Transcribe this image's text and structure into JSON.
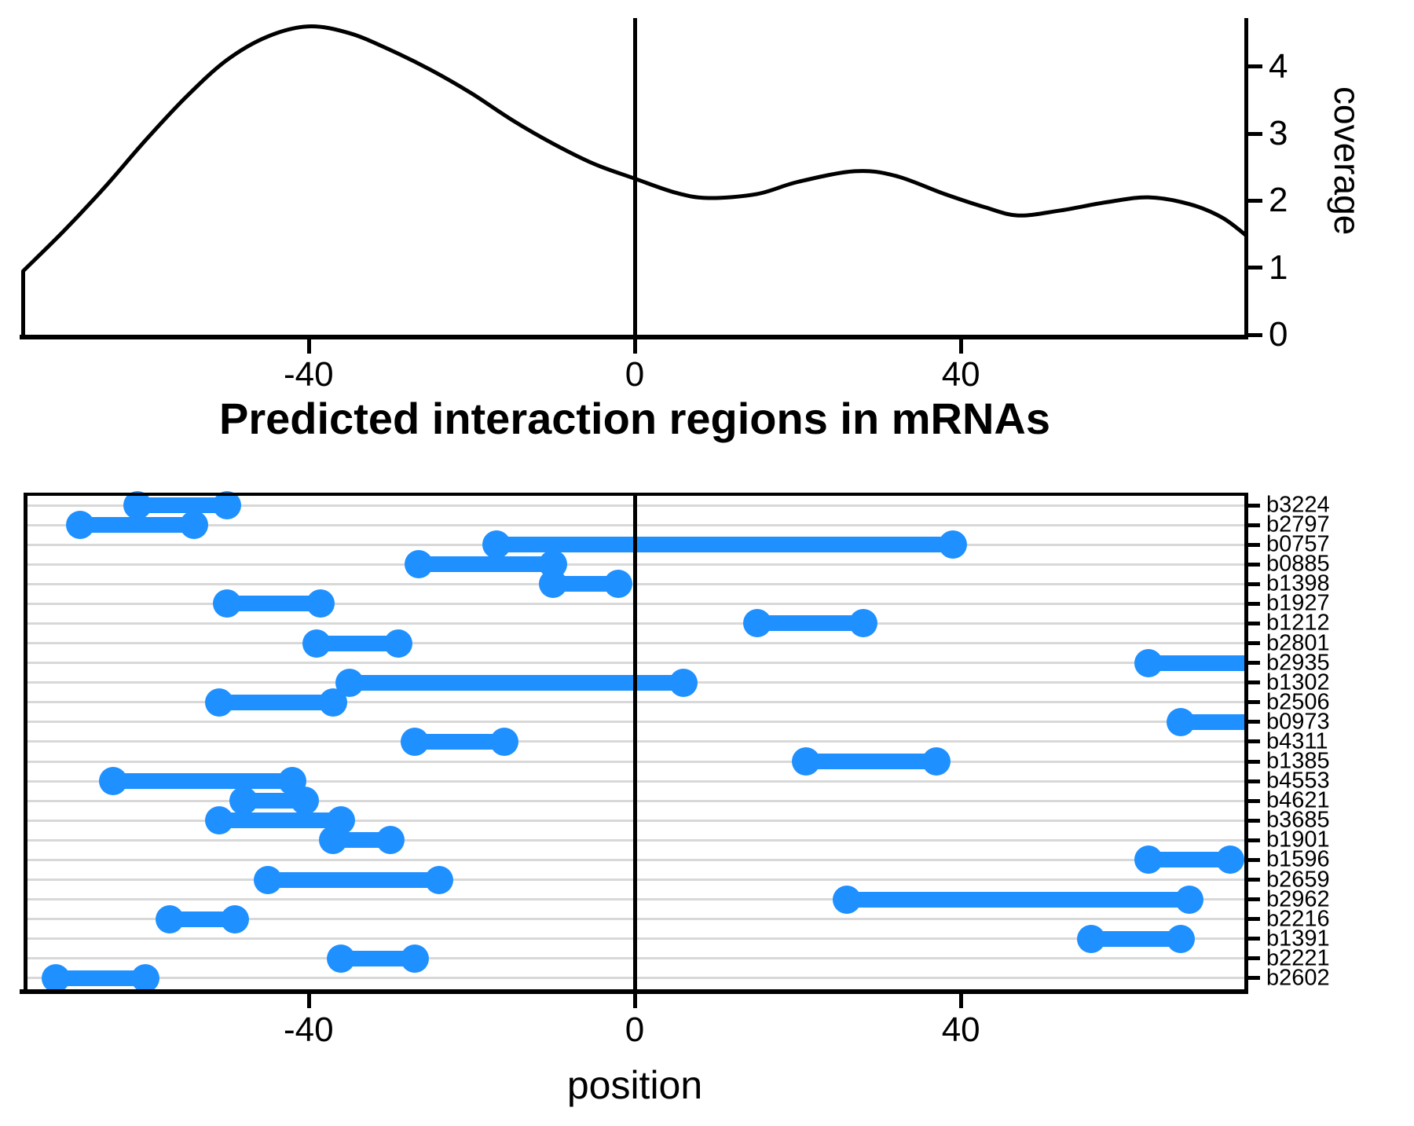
{
  "title": "Predicted interaction regions in mRNAs",
  "colors": {
    "segment": "#1e90ff",
    "gridline": "#d8d8d8",
    "axis": "#000000",
    "curve": "#000000"
  },
  "top_panel": {
    "ylabel": "coverage",
    "yticks": [
      {
        "label": "0",
        "value": 0
      },
      {
        "label": "1",
        "value": 1
      },
      {
        "label": "2",
        "value": 2
      },
      {
        "label": "3",
        "value": 3
      },
      {
        "label": "4",
        "value": 4
      }
    ],
    "xticks": [
      {
        "label": "-40",
        "value": -40
      },
      {
        "label": "0",
        "value": 0
      },
      {
        "label": "40",
        "value": 40
      }
    ]
  },
  "bottom_panel": {
    "xlabel": "position",
    "xticks": [
      {
        "label": "-40",
        "value": -40
      },
      {
        "label": "0",
        "value": 0
      },
      {
        "label": "40",
        "value": 40
      }
    ]
  },
  "chart_data": [
    {
      "type": "line",
      "name": "coverage-density-curve",
      "xlabel": "position",
      "ylabel": "coverage",
      "xlim": [
        -75,
        75
      ],
      "ylim": [
        0,
        4.75
      ],
      "grid": false,
      "points": [
        [
          -75,
          0.95
        ],
        [
          -70,
          1.55
        ],
        [
          -65,
          2.2
        ],
        [
          -60,
          2.9
        ],
        [
          -55,
          3.55
        ],
        [
          -50,
          4.1
        ],
        [
          -45,
          4.45
        ],
        [
          -40,
          4.6
        ],
        [
          -35,
          4.5
        ],
        [
          -30,
          4.25
        ],
        [
          -25,
          3.95
        ],
        [
          -20,
          3.6
        ],
        [
          -15,
          3.2
        ],
        [
          -10,
          2.85
        ],
        [
          -5,
          2.55
        ],
        [
          0,
          2.33
        ],
        [
          5,
          2.12
        ],
        [
          9,
          2.04
        ],
        [
          15,
          2.1
        ],
        [
          20,
          2.28
        ],
        [
          27,
          2.44
        ],
        [
          32,
          2.37
        ],
        [
          38,
          2.1
        ],
        [
          43,
          1.9
        ],
        [
          47,
          1.78
        ],
        [
          52,
          1.85
        ],
        [
          58,
          1.98
        ],
        [
          63,
          2.05
        ],
        [
          68,
          1.95
        ],
        [
          72,
          1.75
        ],
        [
          75,
          1.48
        ]
      ],
      "left_edge_drops_to_zero": true
    },
    {
      "type": "segments",
      "name": "predicted-interaction-regions",
      "title": "Predicted interaction regions in mRNAs",
      "xlabel": "position",
      "xlim": [
        -75,
        75
      ],
      "vline_x": 0,
      "rows": [
        {
          "label": "b3224",
          "start": -61,
          "end": -50,
          "clipped_right": false
        },
        {
          "label": "b2797",
          "start": -68,
          "end": -54,
          "clipped_right": false
        },
        {
          "label": "b0757",
          "start": -17,
          "end": 39,
          "clipped_right": false
        },
        {
          "label": "b0885",
          "start": -26.5,
          "end": -10,
          "clipped_right": false
        },
        {
          "label": "b1398",
          "start": -10,
          "end": -2,
          "clipped_right": false
        },
        {
          "label": "b1927",
          "start": -50,
          "end": -38.5,
          "clipped_right": false
        },
        {
          "label": "b1212",
          "start": 15,
          "end": 28,
          "clipped_right": false
        },
        {
          "label": "b2801",
          "start": -39,
          "end": -29,
          "clipped_right": false
        },
        {
          "label": "b2935",
          "start": 63,
          "end": 75,
          "clipped_right": true
        },
        {
          "label": "b1302",
          "start": -35,
          "end": 6,
          "clipped_right": false
        },
        {
          "label": "b2506",
          "start": -51,
          "end": -37,
          "clipped_right": false
        },
        {
          "label": "b0973",
          "start": 67,
          "end": 75,
          "clipped_right": true
        },
        {
          "label": "b4311",
          "start": -27,
          "end": -16,
          "clipped_right": false
        },
        {
          "label": "b1385",
          "start": 21,
          "end": 37,
          "clipped_right": false
        },
        {
          "label": "b4553",
          "start": -64,
          "end": -42,
          "clipped_right": false
        },
        {
          "label": "b4621",
          "start": -48,
          "end": -40.5,
          "clipped_right": false
        },
        {
          "label": "b3685",
          "start": -51,
          "end": -36,
          "clipped_right": false
        },
        {
          "label": "b1901",
          "start": -37,
          "end": -30,
          "clipped_right": false
        },
        {
          "label": "b1596",
          "start": 63,
          "end": 73,
          "clipped_right": false
        },
        {
          "label": "b2659",
          "start": -45,
          "end": -24,
          "clipped_right": false
        },
        {
          "label": "b2962",
          "start": 26,
          "end": 68,
          "clipped_right": false
        },
        {
          "label": "b2216",
          "start": -57,
          "end": -49,
          "clipped_right": false
        },
        {
          "label": "b1391",
          "start": 56,
          "end": 67,
          "clipped_right": false
        },
        {
          "label": "b2221",
          "start": -36,
          "end": -27,
          "clipped_right": false
        },
        {
          "label": "b2602",
          "start": -71,
          "end": -60,
          "clipped_right": false
        }
      ]
    }
  ]
}
